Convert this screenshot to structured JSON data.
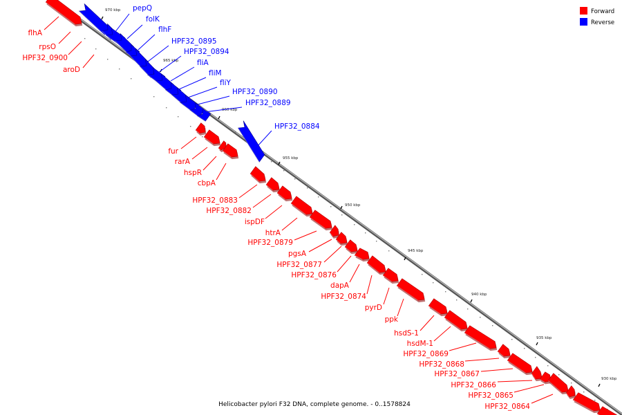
{
  "caption": "Helicobacter pylori F32 DNA, complete genome. - 0..1578824",
  "legend": [
    {
      "label": "Forward",
      "color": "#ff0000"
    },
    {
      "label": "Reverse",
      "color": "#0000ff"
    }
  ],
  "colors": {
    "forward": "#ff0000",
    "reverse": "#0000ff",
    "backbone": "#777777"
  },
  "ticks": [
    "970 kbp",
    "965 kbp",
    "960 kbp",
    "955 kbp",
    "950 kbp",
    "945 kbp",
    "940 kbp",
    "935 kbp",
    "930 kbp"
  ],
  "genes": [
    {
      "name": "flhA",
      "strand": "forward"
    },
    {
      "name": "rpsO",
      "strand": "forward"
    },
    {
      "name": "HPF32_0900",
      "strand": "forward"
    },
    {
      "name": "aroD",
      "strand": "forward"
    },
    {
      "name": "pepQ",
      "strand": "reverse"
    },
    {
      "name": "folK",
      "strand": "reverse"
    },
    {
      "name": "flhF",
      "strand": "reverse"
    },
    {
      "name": "HPF32_0895",
      "strand": "reverse"
    },
    {
      "name": "HPF32_0894",
      "strand": "reverse"
    },
    {
      "name": "fliA",
      "strand": "reverse"
    },
    {
      "name": "fliM",
      "strand": "reverse"
    },
    {
      "name": "fliY",
      "strand": "reverse"
    },
    {
      "name": "HPF32_0890",
      "strand": "reverse"
    },
    {
      "name": "HPF32_0889",
      "strand": "reverse"
    },
    {
      "name": "HPF32_0884",
      "strand": "reverse"
    },
    {
      "name": "fur",
      "strand": "forward"
    },
    {
      "name": "rarA",
      "strand": "forward"
    },
    {
      "name": "hspR",
      "strand": "forward"
    },
    {
      "name": "cbpA",
      "strand": "forward"
    },
    {
      "name": "HPF32_0883",
      "strand": "forward"
    },
    {
      "name": "HPF32_0882",
      "strand": "forward"
    },
    {
      "name": "ispDF",
      "strand": "forward"
    },
    {
      "name": "htrA",
      "strand": "forward"
    },
    {
      "name": "HPF32_0879",
      "strand": "forward"
    },
    {
      "name": "pgsA",
      "strand": "forward"
    },
    {
      "name": "HPF32_0877",
      "strand": "forward"
    },
    {
      "name": "HPF32_0876",
      "strand": "forward"
    },
    {
      "name": "dapA",
      "strand": "forward"
    },
    {
      "name": "HPF32_0874",
      "strand": "forward"
    },
    {
      "name": "pyrD",
      "strand": "forward"
    },
    {
      "name": "ppk",
      "strand": "forward"
    },
    {
      "name": "hsdS-1",
      "strand": "forward"
    },
    {
      "name": "hsdM-1",
      "strand": "forward"
    },
    {
      "name": "HPF32_0869",
      "strand": "forward"
    },
    {
      "name": "HPF32_0868",
      "strand": "forward"
    },
    {
      "name": "HPF32_0867",
      "strand": "forward"
    },
    {
      "name": "HPF32_0866",
      "strand": "forward"
    },
    {
      "name": "HPF32_0865",
      "strand": "forward"
    },
    {
      "name": "HPF32_0864",
      "strand": "forward"
    }
  ]
}
